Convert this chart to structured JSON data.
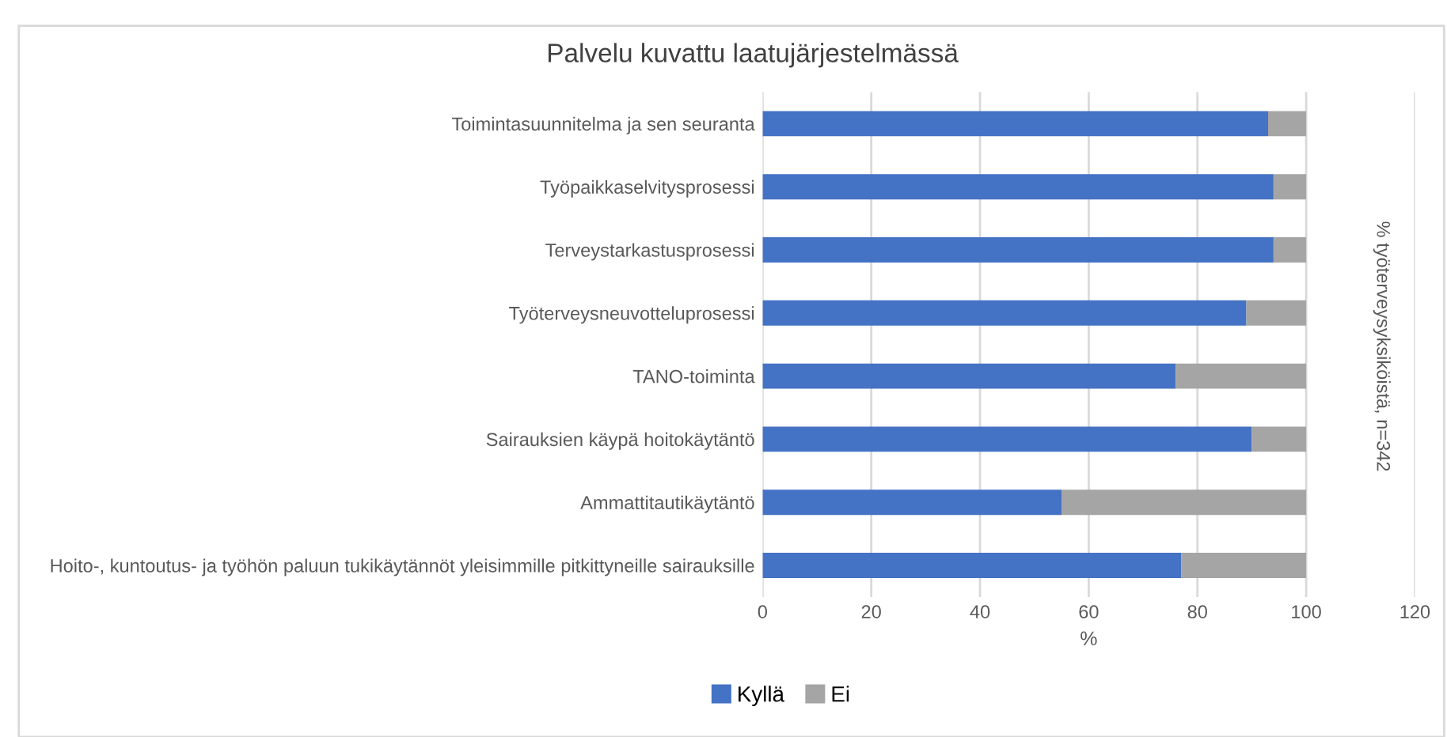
{
  "chart_data": {
    "type": "bar",
    "orientation": "horizontal",
    "stacked": true,
    "title": "Palvelu kuvattu laatujärjestelmässä",
    "xlabel": "%",
    "annotations": [
      "% työterveysyksiköistä, n=342"
    ],
    "categories": [
      "Toimintasuunnitelma ja sen seuranta",
      "Työpaikkaselvitysprosessi",
      "Terveystarkastusprosessi",
      "Työterveysneuvotteluprosessi",
      "TANO-toiminta",
      "Sairauksien käypä hoitokäytäntö",
      "Ammattitautikäytäntö",
      "Hoito-, kuntoutus- ja työhön paluun tukikäytännöt yleisimmille pitkittyneille sairauksille"
    ],
    "series": [
      {
        "name": "Kyllä",
        "color": "#4472c4",
        "values": [
          93,
          94,
          94,
          89,
          76,
          90,
          55,
          77
        ]
      },
      {
        "name": "Ei",
        "color": "#a5a5a5",
        "values": [
          7,
          6,
          6,
          11,
          24,
          10,
          45,
          23
        ]
      }
    ],
    "xlim": [
      0,
      120
    ],
    "xticks": [
      0,
      20,
      40,
      60,
      80,
      100,
      120
    ],
    "grid": "x",
    "legend": "bottom"
  }
}
